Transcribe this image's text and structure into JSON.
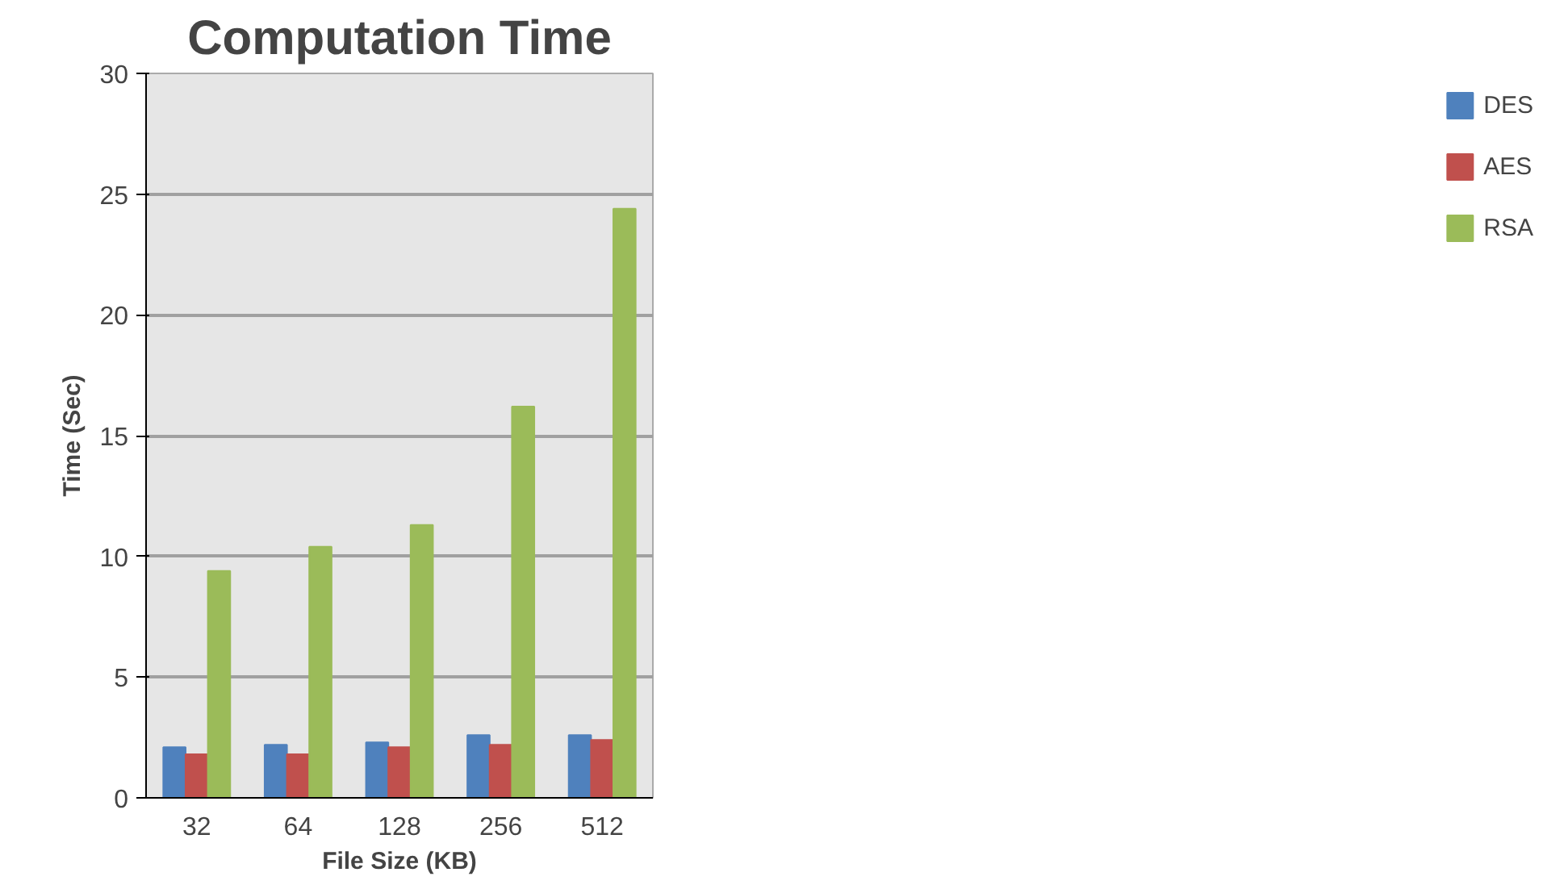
{
  "chart_data": {
    "type": "bar",
    "title": "Computation Time",
    "xlabel": "File Size (KB)",
    "ylabel": "Time (Sec)",
    "categories": [
      "32",
      "64",
      "128",
      "256",
      "512"
    ],
    "series": [
      {
        "name": "DES",
        "color": "#4f81bd",
        "values": [
          2.1,
          2.2,
          2.3,
          2.6,
          2.6
        ]
      },
      {
        "name": "AES",
        "color": "#c0504d",
        "values": [
          1.8,
          1.8,
          2.1,
          2.2,
          2.4
        ]
      },
      {
        "name": "RSA",
        "color": "#9bbb59",
        "values": [
          9.4,
          10.4,
          11.3,
          16.2,
          24.4
        ]
      }
    ],
    "ylim": [
      0,
      30
    ],
    "yticks": [
      0,
      5,
      10,
      15,
      20,
      25,
      30
    ],
    "grid": "y",
    "legend": "right"
  }
}
